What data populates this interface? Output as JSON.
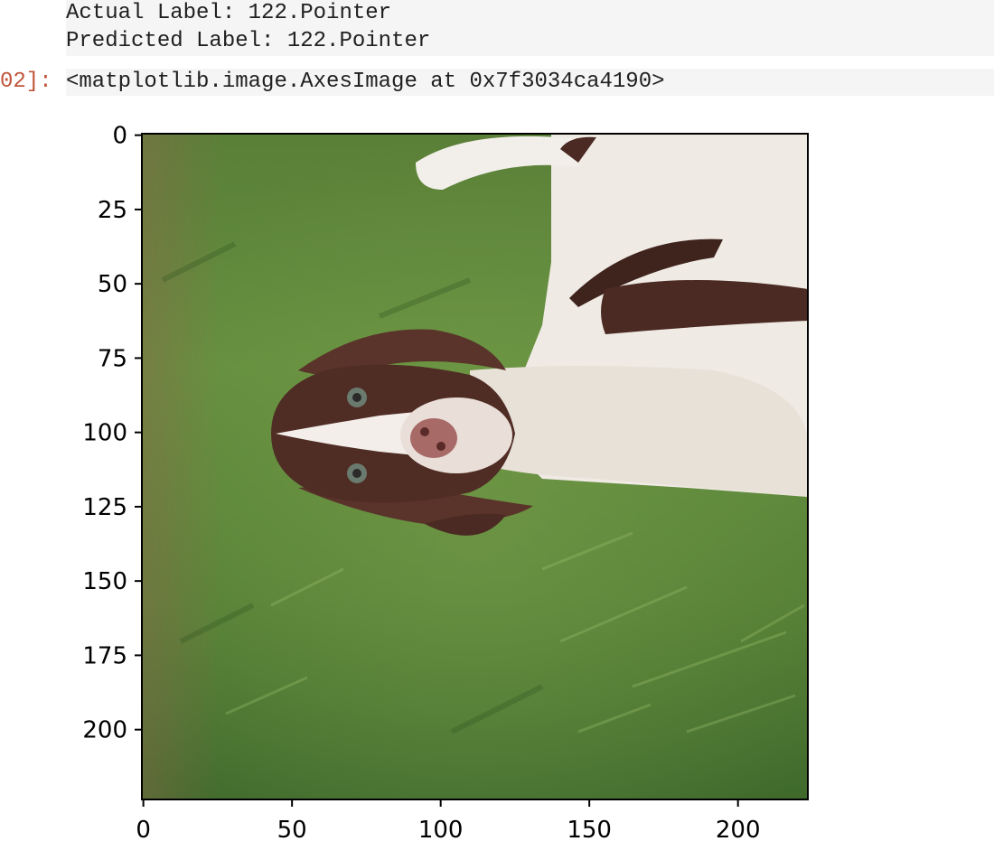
{
  "stdout": {
    "actual_line": "Actual Label: 122.Pointer",
    "predicted_line": "Predicted Label: 122.Pointer"
  },
  "output": {
    "prompt_label": "02]: ",
    "text": "<matplotlib.image.AxesImage at 0x7f3034ca4190>"
  },
  "colors": {
    "prompt": "#c0553a",
    "output_background": "#f5f5f5",
    "grass": "#5f8a3c",
    "dog_white": "#efeae4",
    "dog_brown": "#4a2a22"
  },
  "chart_data": {
    "type": "image",
    "image_subject": "pointer-dog-photo",
    "x_ticks": [
      0,
      50,
      100,
      150,
      200
    ],
    "y_ticks": [
      0,
      25,
      50,
      75,
      100,
      125,
      150,
      175,
      200
    ],
    "x_tick_labels": [
      "0",
      "50",
      "100",
      "150",
      "200"
    ],
    "y_tick_labels": [
      "0",
      "25",
      "50",
      "75",
      "100",
      "125",
      "150",
      "175",
      "200"
    ],
    "xlim": [
      -0.5,
      223.5
    ],
    "ylim": [
      223.5,
      -0.5
    ],
    "xlabel": "",
    "ylabel": "",
    "title": ""
  }
}
